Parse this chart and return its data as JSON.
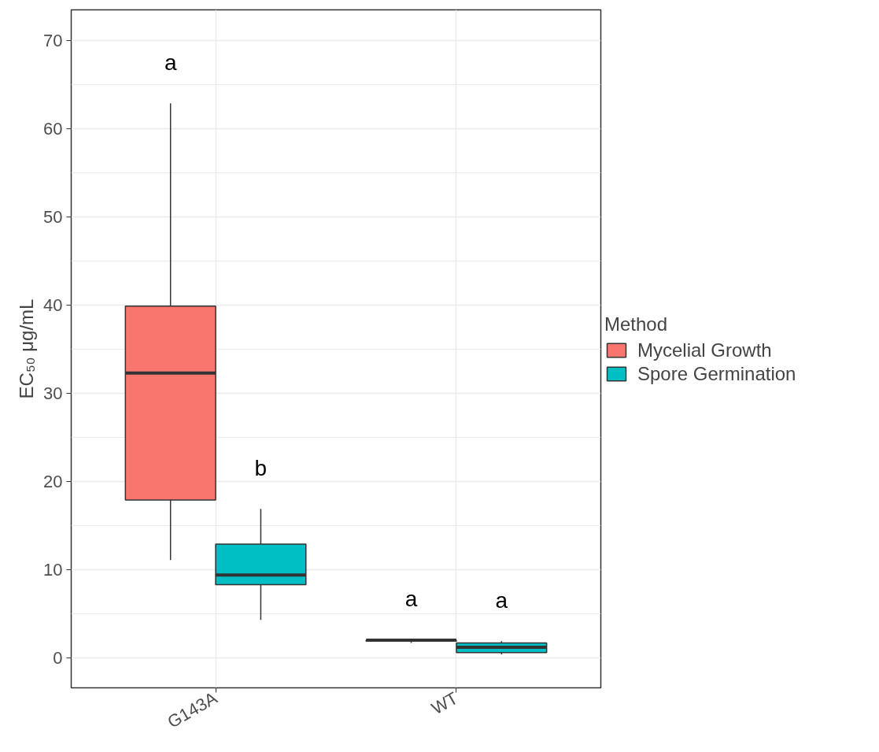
{
  "chart_data": {
    "type": "box",
    "ylabel": "EC₅₀ μg/mL",
    "legend_title": "Method",
    "categories": [
      "G143A",
      "WT"
    ],
    "series": [
      {
        "name": "Mycelial Growth",
        "color": "#f8766d",
        "value_labels": [
          "a",
          "a"
        ],
        "boxes": [
          {
            "low": 11.1,
            "q1": 17.9,
            "median": 32.3,
            "q3": 39.9,
            "high": 62.9
          },
          {
            "low": 1.7,
            "q1": 1.9,
            "median": 2.0,
            "q3": 2.0,
            "high": 2.1
          }
        ]
      },
      {
        "name": "Spore Germination",
        "color": "#00bfc4",
        "value_labels": [
          "b",
          "a"
        ],
        "boxes": [
          {
            "low": 4.3,
            "q1": 8.3,
            "median": 9.4,
            "q3": 12.9,
            "high": 16.9
          },
          {
            "low": 0.4,
            "q1": 0.6,
            "median": 1.2,
            "q3": 1.7,
            "high": 1.9
          }
        ]
      }
    ],
    "ylim": [
      -3.4,
      73.5
    ],
    "yticks": [
      0,
      10,
      20,
      30,
      40,
      50,
      60,
      70
    ],
    "grid": true,
    "legend": "right"
  }
}
